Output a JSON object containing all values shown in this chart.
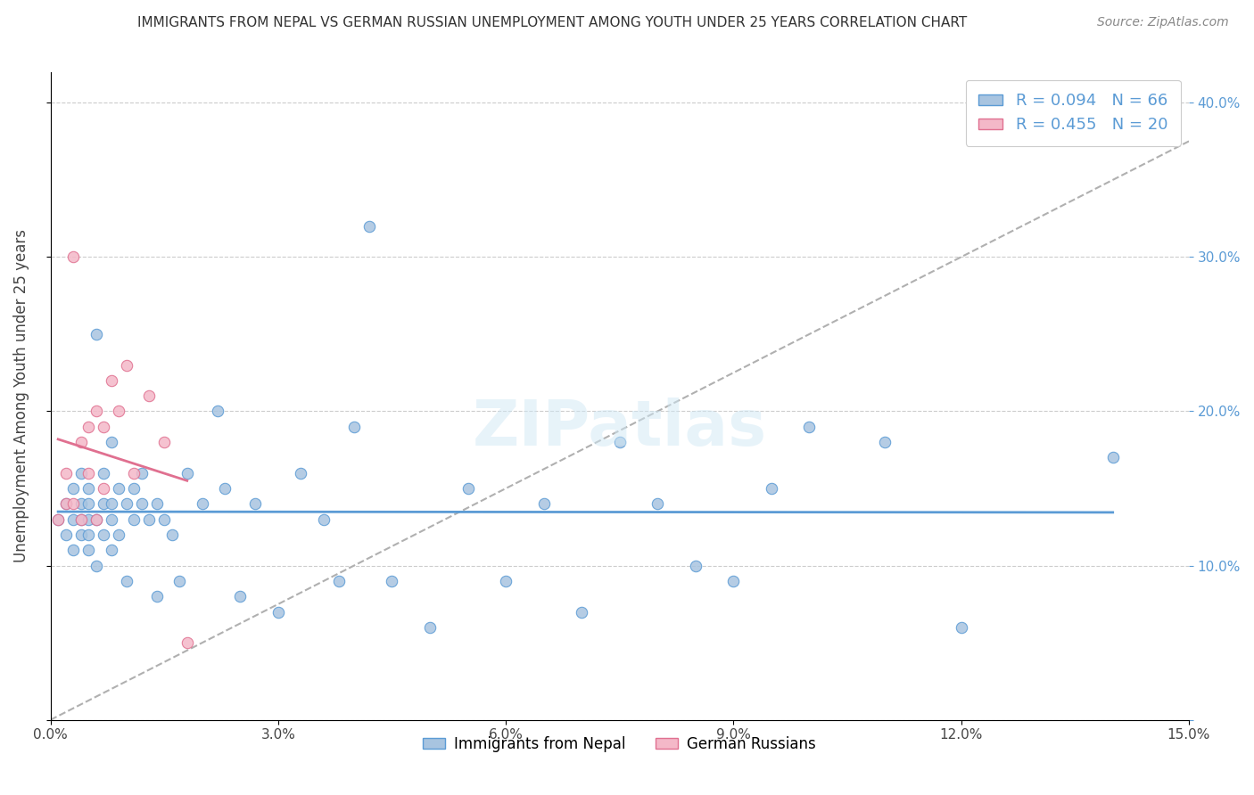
{
  "title": "IMMIGRANTS FROM NEPAL VS GERMAN RUSSIAN UNEMPLOYMENT AMONG YOUTH UNDER 25 YEARS CORRELATION CHART",
  "source": "Source: ZipAtlas.com",
  "xlabel": "",
  "ylabel": "Unemployment Among Youth under 25 years",
  "xlim": [
    0.0,
    0.15
  ],
  "ylim": [
    0.0,
    0.42
  ],
  "x_ticks": [
    0.0,
    0.03,
    0.06,
    0.09,
    0.12,
    0.15
  ],
  "x_tick_labels": [
    "0.0%",
    "3.0%",
    "6.0%",
    "9.0%",
    "12.0%",
    "15.0%"
  ],
  "y_ticks": [
    0.0,
    0.1,
    0.2,
    0.3,
    0.4
  ],
  "y_tick_labels": [
    "",
    "10.0%",
    "20.0%",
    "30.0%",
    "40.0%"
  ],
  "nepal_R": 0.094,
  "nepal_N": 66,
  "german_R": 0.455,
  "german_N": 20,
  "nepal_color": "#a8c4e0",
  "nepal_edge": "#5b9bd5",
  "german_color": "#f4b8c8",
  "german_edge": "#e07090",
  "trend_nepal_color": "#5b9bd5",
  "trend_german_color": "#e07090",
  "trend_dashed_color": "#b0b0b0",
  "watermark": "ZIPatlas",
  "nepal_x": [
    0.001,
    0.002,
    0.002,
    0.003,
    0.003,
    0.003,
    0.004,
    0.004,
    0.004,
    0.004,
    0.005,
    0.005,
    0.005,
    0.005,
    0.005,
    0.006,
    0.006,
    0.006,
    0.007,
    0.007,
    0.007,
    0.008,
    0.008,
    0.008,
    0.008,
    0.009,
    0.009,
    0.01,
    0.01,
    0.011,
    0.011,
    0.012,
    0.012,
    0.013,
    0.014,
    0.014,
    0.015,
    0.016,
    0.017,
    0.018,
    0.02,
    0.022,
    0.023,
    0.025,
    0.027,
    0.03,
    0.033,
    0.036,
    0.038,
    0.04,
    0.042,
    0.045,
    0.05,
    0.055,
    0.06,
    0.065,
    0.07,
    0.075,
    0.08,
    0.085,
    0.09,
    0.095,
    0.1,
    0.11,
    0.12,
    0.14
  ],
  "nepal_y": [
    0.13,
    0.12,
    0.14,
    0.11,
    0.13,
    0.15,
    0.12,
    0.14,
    0.13,
    0.16,
    0.11,
    0.14,
    0.12,
    0.13,
    0.15,
    0.1,
    0.13,
    0.25,
    0.12,
    0.14,
    0.16,
    0.11,
    0.14,
    0.13,
    0.18,
    0.12,
    0.15,
    0.09,
    0.14,
    0.13,
    0.15,
    0.14,
    0.16,
    0.13,
    0.08,
    0.14,
    0.13,
    0.12,
    0.09,
    0.16,
    0.14,
    0.2,
    0.15,
    0.08,
    0.14,
    0.07,
    0.16,
    0.13,
    0.09,
    0.19,
    0.32,
    0.09,
    0.06,
    0.15,
    0.09,
    0.14,
    0.07,
    0.18,
    0.14,
    0.1,
    0.09,
    0.15,
    0.19,
    0.18,
    0.06,
    0.17
  ],
  "german_x": [
    0.001,
    0.002,
    0.002,
    0.003,
    0.003,
    0.004,
    0.004,
    0.005,
    0.005,
    0.006,
    0.006,
    0.007,
    0.007,
    0.008,
    0.009,
    0.01,
    0.011,
    0.013,
    0.015,
    0.018
  ],
  "german_y": [
    0.13,
    0.14,
    0.16,
    0.3,
    0.14,
    0.18,
    0.13,
    0.16,
    0.19,
    0.13,
    0.2,
    0.15,
    0.19,
    0.22,
    0.2,
    0.23,
    0.16,
    0.21,
    0.18,
    0.05
  ]
}
